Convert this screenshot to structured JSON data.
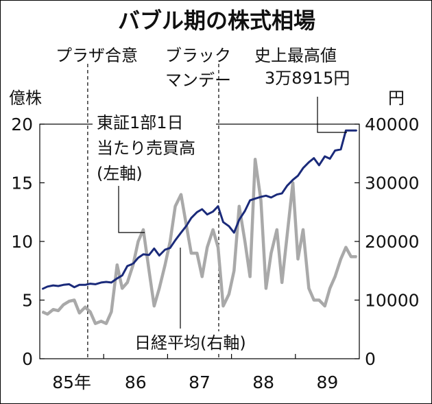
{
  "chart_data": {
    "type": "line",
    "title": "バブル期の株式相場",
    "left_axis": {
      "unit": "億株",
      "range": [
        0,
        20
      ],
      "ticks": [
        0,
        5,
        10,
        15,
        20
      ],
      "tick_labels": [
        "0",
        "5",
        "10",
        "15",
        "20"
      ]
    },
    "right_axis": {
      "unit": "円",
      "range": [
        0,
        40000
      ],
      "ticks": [
        0,
        10000,
        20000,
        30000,
        40000
      ],
      "tick_labels": [
        "0",
        "10000",
        "20000",
        "30000",
        "40000"
      ]
    },
    "x_axis": {
      "range": [
        1985.0,
        1990.0
      ],
      "ticks": [
        1985.5,
        1986.5,
        1987.5,
        1988.5,
        1989.5
      ],
      "tick_labels": [
        "85年",
        "86",
        "87",
        "88",
        "89"
      ]
    },
    "grid": false,
    "events": [
      {
        "x": 1985.75,
        "label_lines": [
          "プラザ合意"
        ]
      },
      {
        "x": 1987.8,
        "label_lines": [
          "ブラック",
          "マンデー"
        ]
      }
    ],
    "annotations": {
      "peak_lines": [
        "史上最高値",
        "3万8915円"
      ],
      "volume_lines": [
        "東証1部1日",
        "当たり売買高",
        "(左軸)"
      ],
      "nikkei_label": "日経平均(右軸)"
    },
    "series": [
      {
        "name": "日経平均",
        "axis": "right",
        "color": "#1a2a7a",
        "x": [
          1985.04,
          1985.12,
          1985.21,
          1985.29,
          1985.37,
          1985.46,
          1985.54,
          1985.62,
          1985.71,
          1985.79,
          1985.87,
          1985.96,
          1986.04,
          1986.12,
          1986.21,
          1986.29,
          1986.37,
          1986.46,
          1986.54,
          1986.62,
          1986.71,
          1986.79,
          1986.87,
          1986.96,
          1987.04,
          1987.12,
          1987.21,
          1987.29,
          1987.37,
          1987.46,
          1987.54,
          1987.62,
          1987.71,
          1987.79,
          1987.87,
          1987.96,
          1988.04,
          1988.12,
          1988.21,
          1988.29,
          1988.37,
          1988.46,
          1988.54,
          1988.62,
          1988.71,
          1988.79,
          1988.87,
          1988.96,
          1989.04,
          1989.12,
          1989.21,
          1989.29,
          1989.37,
          1989.46,
          1989.54,
          1989.62,
          1989.71,
          1989.79,
          1989.87,
          1989.96
        ],
        "values": [
          11900,
          12300,
          12500,
          12400,
          12600,
          12700,
          12200,
          12600,
          12600,
          12800,
          12700,
          13000,
          13100,
          13000,
          13700,
          14200,
          15800,
          16200,
          17200,
          17800,
          17700,
          18800,
          17600,
          18600,
          18900,
          20200,
          21500,
          22600,
          24000,
          25000,
          25500,
          24600,
          25100,
          26000,
          23300,
          22600,
          21500,
          23700,
          25200,
          27000,
          27300,
          27600,
          27800,
          27500,
          28000,
          28200,
          29500,
          30500,
          31200,
          32500,
          33500,
          34200,
          33000,
          34500,
          34100,
          35500,
          35700,
          38915,
          38915,
          38915
        ]
      },
      {
        "name": "東証1部1日当たり売買高",
        "axis": "left",
        "color": "#a9a9a9",
        "x": [
          1985.04,
          1985.12,
          1985.21,
          1985.29,
          1985.37,
          1985.46,
          1985.54,
          1985.62,
          1985.71,
          1985.79,
          1985.87,
          1985.96,
          1986.04,
          1986.12,
          1986.21,
          1986.29,
          1986.37,
          1986.46,
          1986.54,
          1986.62,
          1986.71,
          1986.79,
          1986.87,
          1986.96,
          1987.04,
          1987.12,
          1987.21,
          1987.29,
          1987.37,
          1987.46,
          1987.54,
          1987.62,
          1987.71,
          1987.79,
          1987.87,
          1987.96,
          1988.04,
          1988.12,
          1988.21,
          1988.29,
          1988.37,
          1988.46,
          1988.54,
          1988.62,
          1988.71,
          1988.79,
          1988.87,
          1988.96,
          1989.04,
          1989.12,
          1989.21,
          1989.29,
          1989.37,
          1989.46,
          1989.54,
          1989.62,
          1989.71,
          1989.79,
          1989.87,
          1989.96
        ],
        "values": [
          4.0,
          3.8,
          4.2,
          4.1,
          4.6,
          4.9,
          5.0,
          3.9,
          4.4,
          4.0,
          3.0,
          3.2,
          3.0,
          4.0,
          8.0,
          6.0,
          6.5,
          8.0,
          10.0,
          11.0,
          7.5,
          4.5,
          6.0,
          8.0,
          10.0,
          13.0,
          14.0,
          11.5,
          9.0,
          9.0,
          7.0,
          9.5,
          11.0,
          9.5,
          4.5,
          5.5,
          7.5,
          13.0,
          10.0,
          7.0,
          17.0,
          13.5,
          6.0,
          9.0,
          11.0,
          6.5,
          10.5,
          15.0,
          8.5,
          11.0,
          6.0,
          5.0,
          5.0,
          4.5,
          6.0,
          7.0,
          8.5,
          9.5,
          8.7,
          8.7
        ]
      }
    ]
  }
}
